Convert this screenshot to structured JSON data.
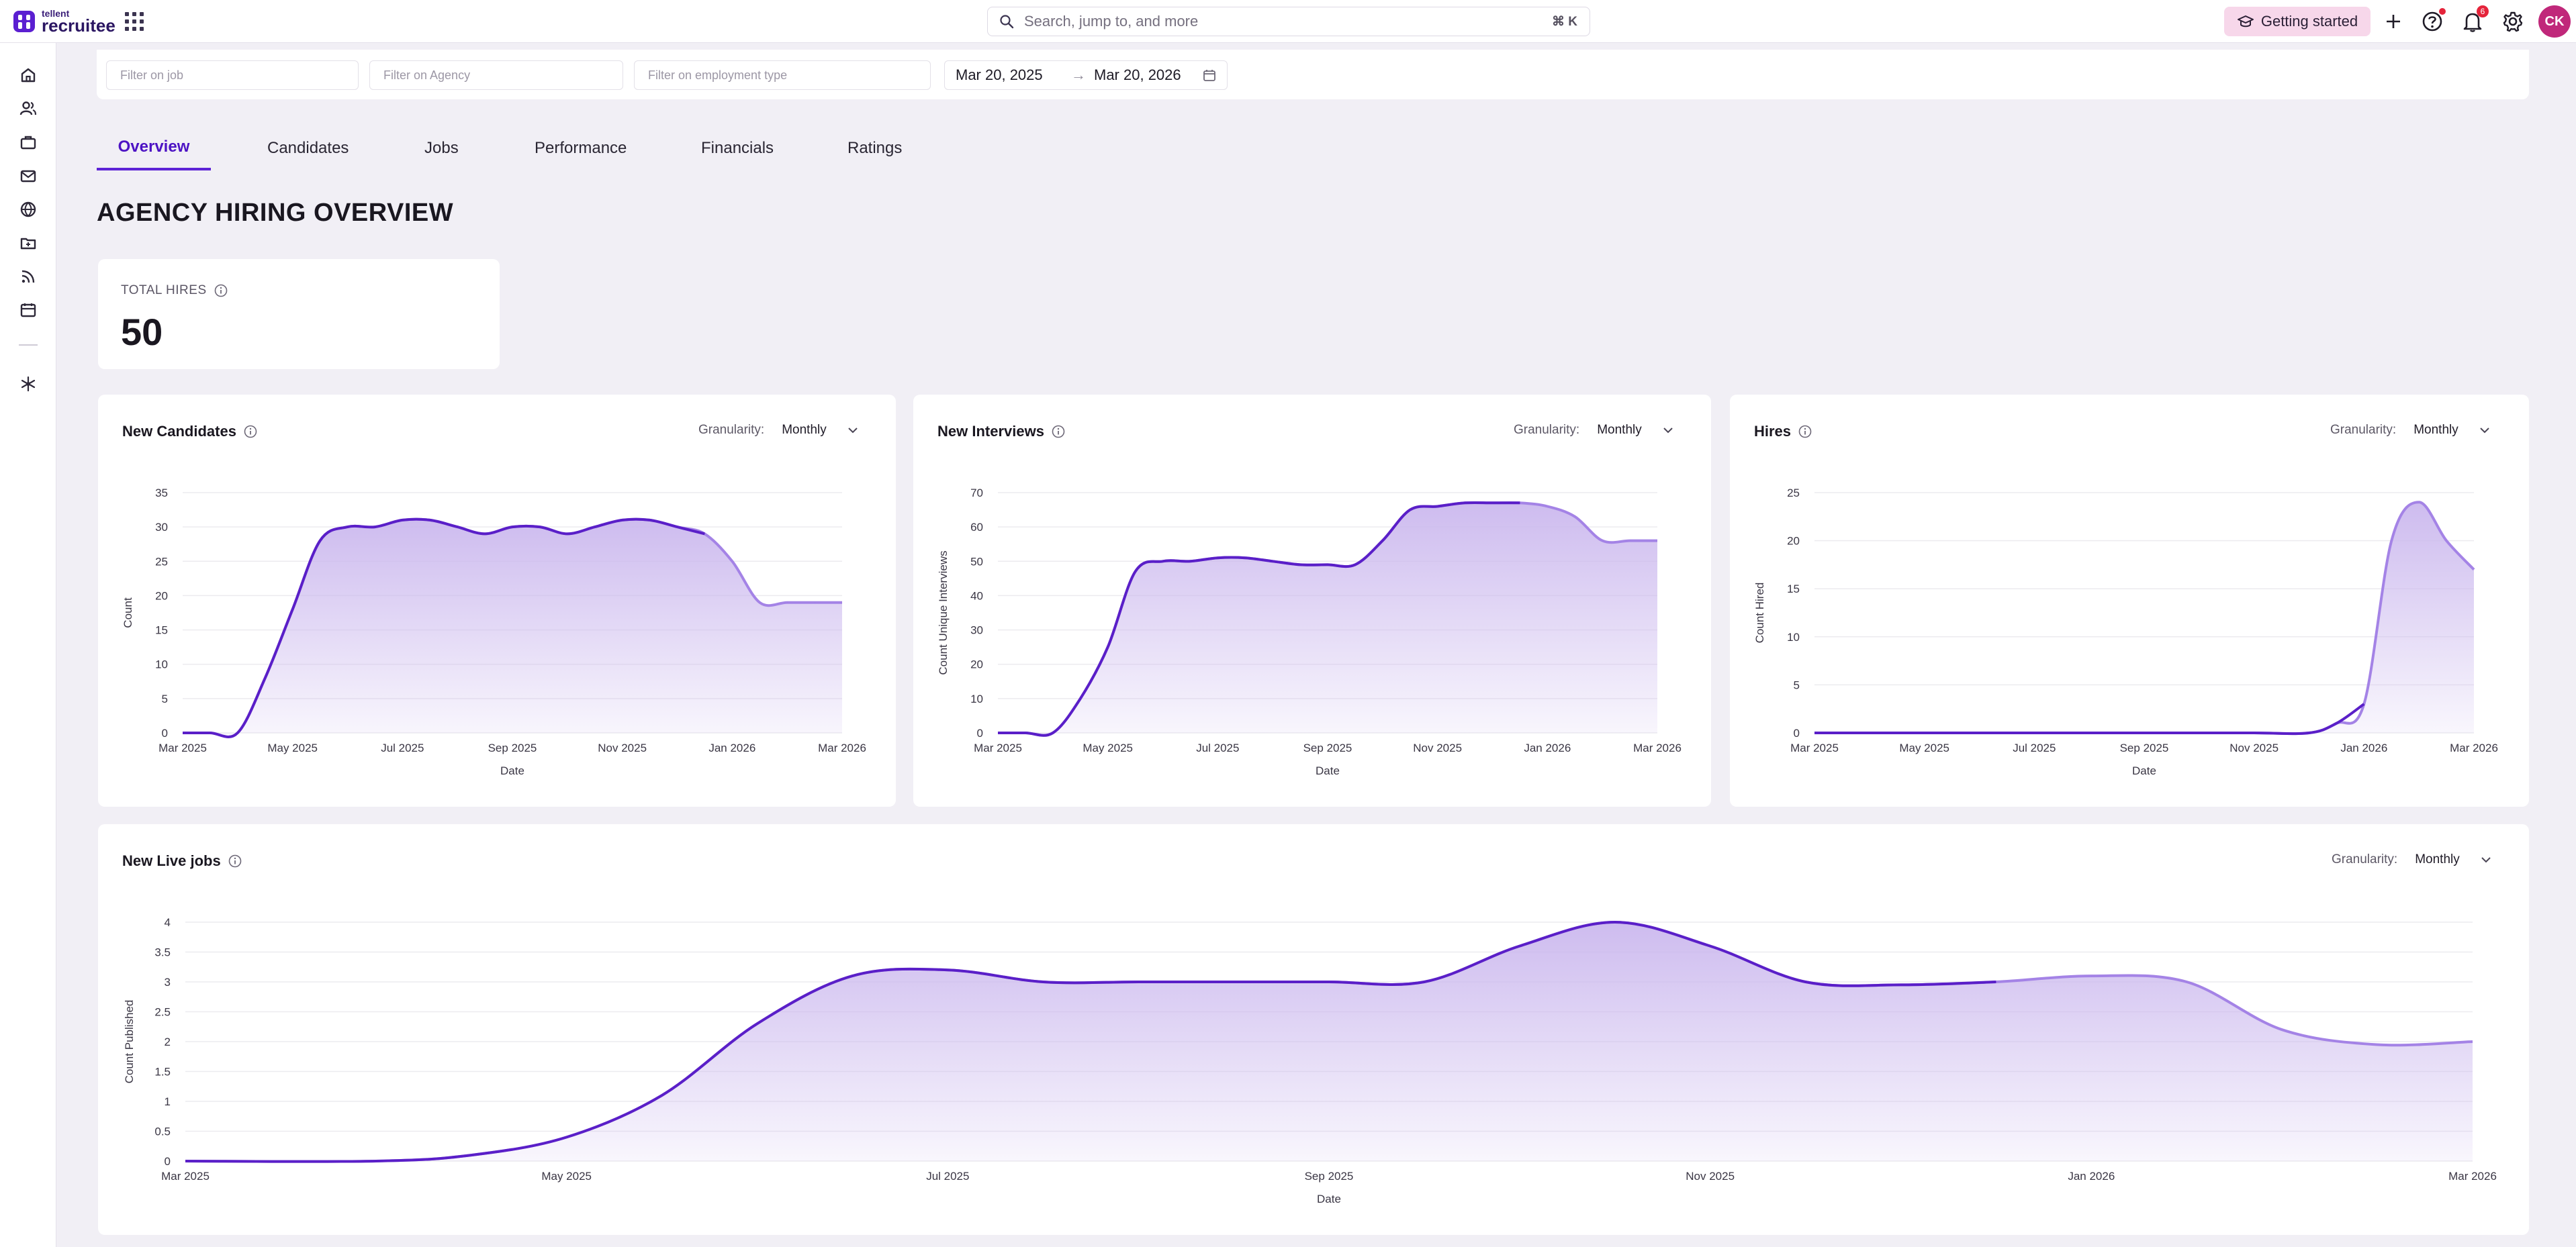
{
  "topbar": {
    "brand_small": "tellent",
    "brand_big": "recruitee",
    "search_placeholder": "Search, jump to, and more",
    "search_shortcut": "⌘ K",
    "getting_started_label": "Getting started",
    "notifications_count": "6",
    "avatar_initials": "CK"
  },
  "sidebar": {
    "icons": [
      "home-icon",
      "candidates-icon",
      "jobs-icon",
      "mail-icon",
      "globe-icon",
      "folder-icon",
      "feed-icon",
      "calendar-icon",
      "integrations-icon"
    ]
  },
  "filters": {
    "job_placeholder": "Filter on job",
    "agency_placeholder": "Filter on Agency",
    "employment_placeholder": "Filter on employment type",
    "date_from": "Mar 20, 2025",
    "date_to": "Mar 20, 2026"
  },
  "tabs": [
    {
      "label": "Overview",
      "active": true
    },
    {
      "label": "Candidates",
      "active": false
    },
    {
      "label": "Jobs",
      "active": false
    },
    {
      "label": "Performance",
      "active": false
    },
    {
      "label": "Financials",
      "active": false
    },
    {
      "label": "Ratings",
      "active": false
    }
  ],
  "page_title": "AGENCY HIRING OVERVIEW",
  "total_hires": {
    "label": "TOTAL HIRES",
    "value": "50"
  },
  "granularity_label": "Granularity:",
  "granularity_value": "Monthly",
  "colors": {
    "accent": "#5b1fd1",
    "line": "#5a1fc8",
    "line_light": "#a483e6",
    "area": "#cbb8ee"
  },
  "chart_data": [
    {
      "type": "area",
      "title": "New Candidates",
      "xlabel": "Date",
      "ylabel": "Count",
      "x_ticks": [
        "Mar 2025",
        "May 2025",
        "Jul 2025",
        "Sep 2025",
        "Nov 2025",
        "Jan 2026",
        "Mar 2026"
      ],
      "y_ticks": [
        0,
        5,
        10,
        15,
        20,
        25,
        30,
        35
      ],
      "ylim": [
        0,
        35
      ],
      "x": [
        0,
        0.5,
        1,
        1.5,
        2,
        2.5,
        3,
        3.5,
        4,
        4.5,
        5,
        5.5,
        6,
        6.5,
        7,
        7.5,
        8,
        8.5,
        9,
        9.5,
        10,
        10.5,
        11,
        11.5,
        12
      ],
      "values": [
        0,
        0,
        0,
        8,
        18,
        28,
        30,
        30,
        31,
        31,
        30,
        29,
        30,
        30,
        29,
        30,
        31,
        31,
        30,
        29,
        25,
        19,
        19,
        19,
        19
      ],
      "xlim": [
        0,
        12
      ],
      "series_end": 12,
      "grid": true
    },
    {
      "type": "area",
      "title": "New Interviews",
      "xlabel": "Date",
      "ylabel": "Count Unique Interviews",
      "x_ticks": [
        "Mar 2025",
        "May 2025",
        "Jul 2025",
        "Sep 2025",
        "Nov 2025",
        "Jan 2026",
        "Mar 2026"
      ],
      "y_ticks": [
        0,
        10,
        20,
        30,
        40,
        50,
        60,
        70
      ],
      "ylim": [
        0,
        70
      ],
      "x": [
        0,
        0.5,
        1,
        1.5,
        2,
        2.5,
        3,
        3.5,
        4,
        4.5,
        5,
        5.5,
        6,
        6.5,
        7,
        7.5,
        8,
        8.5,
        9,
        9.5,
        10,
        10.5,
        11,
        11.5,
        12
      ],
      "values": [
        0,
        0,
        0,
        10,
        25,
        47,
        50,
        50,
        51,
        51,
        50,
        49,
        49,
        49,
        56,
        65,
        66,
        67,
        67,
        67,
        66,
        63,
        56,
        56,
        56
      ],
      "xlim": [
        0,
        12
      ],
      "series_end": 12,
      "grid": true
    },
    {
      "type": "area",
      "title": "Hires",
      "xlabel": "Date",
      "ylabel": "Count Hired",
      "x_ticks": [
        "Mar 2025",
        "May 2025",
        "Jul 2025",
        "Sep 2025",
        "Nov 2025",
        "Jan 2026",
        "Mar 2026"
      ],
      "y_ticks": [
        0,
        5,
        10,
        15,
        20,
        25
      ],
      "ylim": [
        0,
        25
      ],
      "x": [
        0,
        1,
        2,
        3,
        4,
        5,
        6,
        7,
        8,
        9,
        9.5,
        10,
        10.5,
        11,
        11.5,
        12
      ],
      "values": [
        0,
        0,
        0,
        0,
        0,
        0,
        0,
        0,
        0,
        0,
        1,
        3,
        20,
        24,
        20,
        17
      ],
      "xlim": [
        0,
        12
      ],
      "series_end": 12,
      "grid": true
    },
    {
      "type": "area",
      "title": "New Live jobs",
      "xlabel": "Date",
      "ylabel": "Count Published",
      "x_ticks": [
        "Mar 2025",
        "May 2025",
        "Jul 2025",
        "Sep 2025",
        "Nov 2025",
        "Jan 2026",
        "Mar 2026"
      ],
      "y_ticks": [
        0,
        0.5,
        1,
        1.5,
        2,
        2.5,
        3,
        3.5,
        4
      ],
      "ylim": [
        0,
        4
      ],
      "x": [
        0,
        1,
        1.5,
        2,
        2.5,
        3,
        3.5,
        4,
        4.5,
        5,
        5.5,
        6,
        6.5,
        7,
        7.5,
        8,
        8.5,
        9,
        9.5,
        10,
        10.5,
        11,
        11.5,
        12
      ],
      "values": [
        0,
        0,
        0.1,
        0.4,
        1.1,
        2.3,
        3.1,
        3.2,
        3.0,
        3.0,
        3.0,
        3.0,
        3.0,
        3.6,
        4.0,
        3.6,
        3.0,
        2.95,
        3.0,
        3.1,
        3.0,
        2.2,
        1.95,
        2.0
      ],
      "xlim": [
        0,
        12
      ],
      "series_end": 12,
      "grid": true
    }
  ]
}
